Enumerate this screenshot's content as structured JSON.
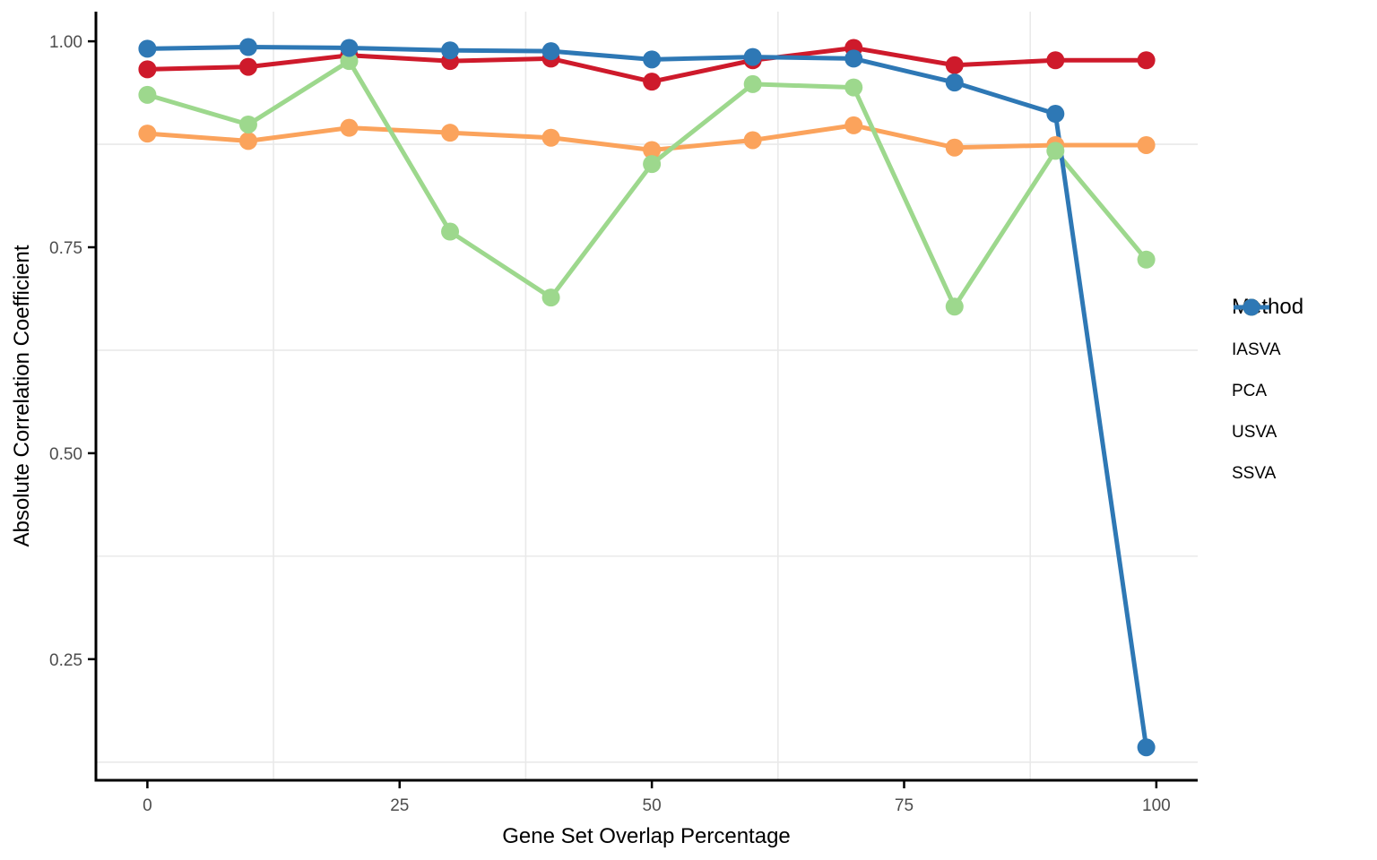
{
  "chart_data": {
    "type": "line",
    "title": "",
    "xlabel": "Gene Set Overlap Percentage",
    "ylabel": "Absolute Correlation Coefficient",
    "x": [
      0,
      10,
      20,
      30,
      40,
      50,
      60,
      70,
      80,
      90,
      99
    ],
    "series": [
      {
        "name": "IASVA",
        "color": "#CE1A2B",
        "values": [
          0.966,
          0.969,
          0.983,
          0.976,
          0.979,
          0.951,
          0.977,
          0.992,
          0.971,
          0.977,
          0.977
        ]
      },
      {
        "name": "PCA",
        "color": "#FBA35C",
        "values": [
          0.888,
          0.879,
          0.895,
          0.889,
          0.883,
          0.868,
          0.88,
          0.898,
          0.871,
          0.874,
          0.874
        ]
      },
      {
        "name": "USVA",
        "color": "#9DD88D",
        "values": [
          0.935,
          0.899,
          0.976,
          0.769,
          0.689,
          0.851,
          0.948,
          0.944,
          0.678,
          0.867,
          0.735
        ]
      },
      {
        "name": "SSVA",
        "color": "#2E78B5",
        "values": [
          0.991,
          0.993,
          0.992,
          0.989,
          0.988,
          0.978,
          0.981,
          0.979,
          0.95,
          0.912,
          0.143
        ]
      }
    ],
    "x_tick_labels": [
      "0",
      "25",
      "50",
      "75",
      "100"
    ],
    "x_tick_values": [
      0,
      25,
      50,
      75,
      100
    ],
    "y_tick_labels": [
      "0.25",
      "0.50",
      "0.75",
      "1.00"
    ],
    "y_tick_values": [
      0.25,
      0.5,
      0.75,
      1.0
    ],
    "xlim": [
      -5.1,
      104.1
    ],
    "ylim": [
      0.103,
      1.036
    ],
    "grid": "minor-only",
    "minor_x_gridlines": [
      12.5,
      37.5,
      62.5,
      87.5
    ],
    "minor_y_gridlines": [
      0.125,
      0.375,
      0.625,
      0.875
    ],
    "legend": {
      "title": "Method",
      "position": "right"
    },
    "style": {
      "grid_color": "#e9e9e9",
      "axis_line_color": "#000000",
      "tick_label_color": "#4d4d4d",
      "background": "#ffffff",
      "line_width": 5,
      "point_radius": 10
    }
  }
}
